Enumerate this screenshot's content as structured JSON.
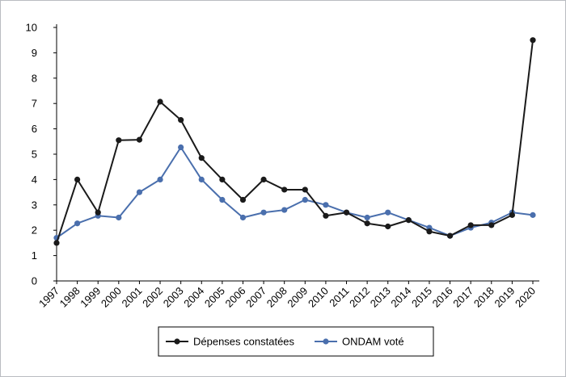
{
  "chart_data": {
    "type": "line",
    "title": "",
    "xlabel": "",
    "ylabel": "",
    "ylim": [
      0,
      10
    ],
    "yticks": [
      0,
      1,
      2,
      3,
      4,
      5,
      6,
      7,
      8,
      9,
      10
    ],
    "grid": false,
    "legend": "bottom",
    "categories": [
      "1997",
      "1998",
      "1999",
      "2000",
      "2001",
      "2002",
      "2003",
      "2004",
      "2005",
      "2006",
      "2007",
      "2008",
      "2009",
      "2010",
      "2011",
      "2012",
      "2013",
      "2014",
      "2015",
      "2016",
      "2017",
      "2018",
      "2019",
      "2020"
    ],
    "series": [
      {
        "name": "Dépenses constatées",
        "color": "#1a1a1a",
        "values": [
          1.5,
          4.0,
          2.7,
          5.55,
          5.57,
          7.07,
          6.35,
          4.85,
          4.0,
          3.2,
          4.0,
          3.6,
          3.6,
          2.57,
          2.7,
          2.27,
          2.15,
          2.4,
          1.95,
          1.78,
          2.2,
          2.2,
          2.6,
          9.5
        ]
      },
      {
        "name": "ONDAM voté",
        "color": "#4a6fad",
        "values": [
          1.7,
          2.27,
          2.57,
          2.5,
          3.5,
          4.0,
          5.27,
          4.0,
          3.2,
          2.5,
          2.7,
          2.8,
          3.2,
          3.0,
          2.7,
          2.5,
          2.7,
          2.4,
          2.1,
          1.78,
          2.1,
          2.3,
          2.7,
          2.6
        ]
      }
    ]
  }
}
